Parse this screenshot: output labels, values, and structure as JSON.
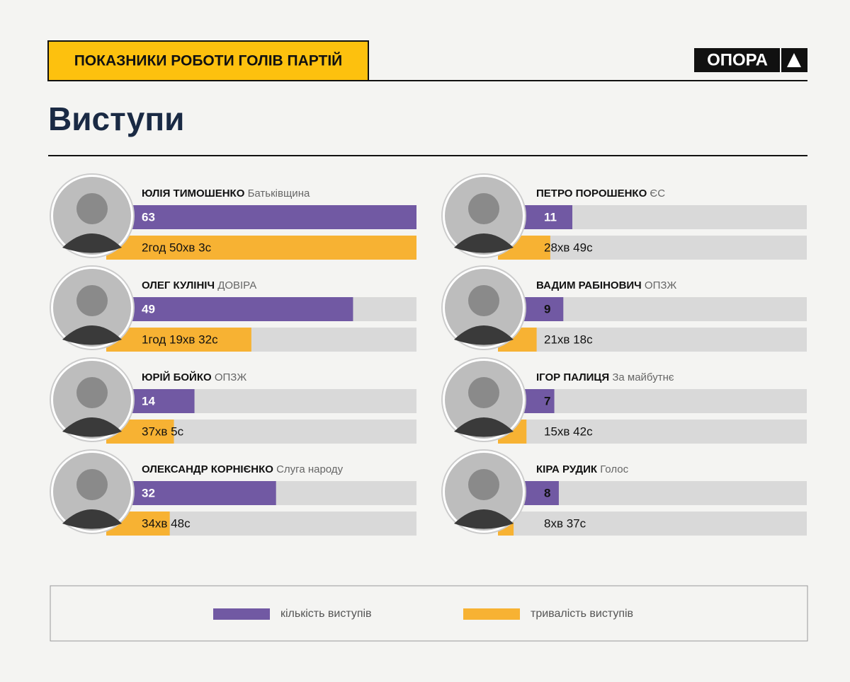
{
  "header": {
    "title": "ПОКАЗНИКИ РОБОТИ ГОЛІВ ПАРТІЙ",
    "logo": "ОПОРА"
  },
  "chart_data": {
    "type": "bar",
    "title": "Виступи",
    "categories": [
      "ЮЛІЯ ТИМОШЕНКО",
      "ОЛЕГ КУЛІНІЧ",
      "ЮРІЙ БОЙКО",
      "ОЛЕКСАНДР КОРНІЄНКО",
      "ПЕТРО ПОРОШЕНКО",
      "ВАДИМ РАБІНОВИЧ",
      "ІГОР ПАЛИЦЯ",
      "КІРА РУДИК"
    ],
    "parties": [
      "Батьківщина",
      "ДОВІРА",
      "ОПЗЖ",
      "Слуга народу",
      "ЄС",
      "ОПЗЖ",
      "За майбутнє",
      "Голос"
    ],
    "series": [
      {
        "name": "кількість виступів",
        "color": "#7159a3",
        "values": [
          63,
          49,
          14,
          32,
          11,
          9,
          7,
          8
        ]
      },
      {
        "name": "тривалість виступів",
        "color": "#f7b233",
        "values": [
          10203,
          4772,
          2225,
          2088,
          1729,
          1278,
          942,
          517
        ],
        "value_labels": [
          "2год 50хв 3с",
          "1год 19хв 32с",
          "37хв 5с",
          "34хв 48с",
          "28хв 49с",
          "21хв 18с",
          "15хв 42с",
          "8хв 37с"
        ]
      }
    ]
  }
}
